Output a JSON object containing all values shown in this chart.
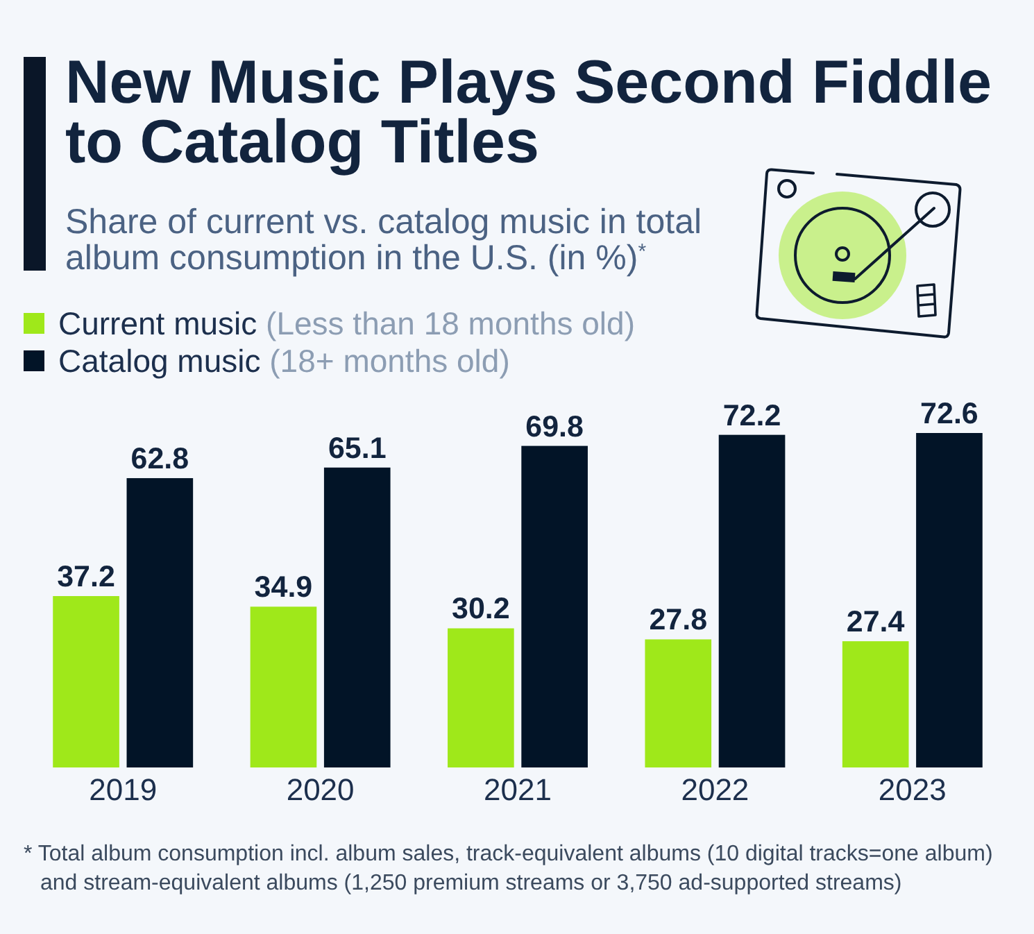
{
  "chart_data": {
    "type": "bar",
    "title": "New Music Plays Second Fiddle to Catalog Titles",
    "subtitle": "Share of current vs. catalog music in total album consumption in the U.S. (in %)$^{*}$",
    "categories": [
      "2019",
      "2020",
      "2021",
      "2022",
      "2023"
    ],
    "series": [
      {
        "name": "Current music (Less than 18 months old)",
        "color": "#9fe81a",
        "values": [
          37.2,
          34.9,
          30.2,
          27.8,
          27.4
        ]
      },
      {
        "name": "Catalog music (18+ months old)",
        "color": "#021427",
        "values": [
          62.8,
          65.1,
          69.8,
          72.2,
          72.6
        ]
      }
    ],
    "data_labels": true,
    "legend": "top left",
    "annotations": [
      "* Total album consumption incl. album sales, track-equivalent albums (10 digital tracks=one album) and stream-equivalent albums (1,250 premium streams or 3,750 ad-supported streams)"
    ]
  }
}
